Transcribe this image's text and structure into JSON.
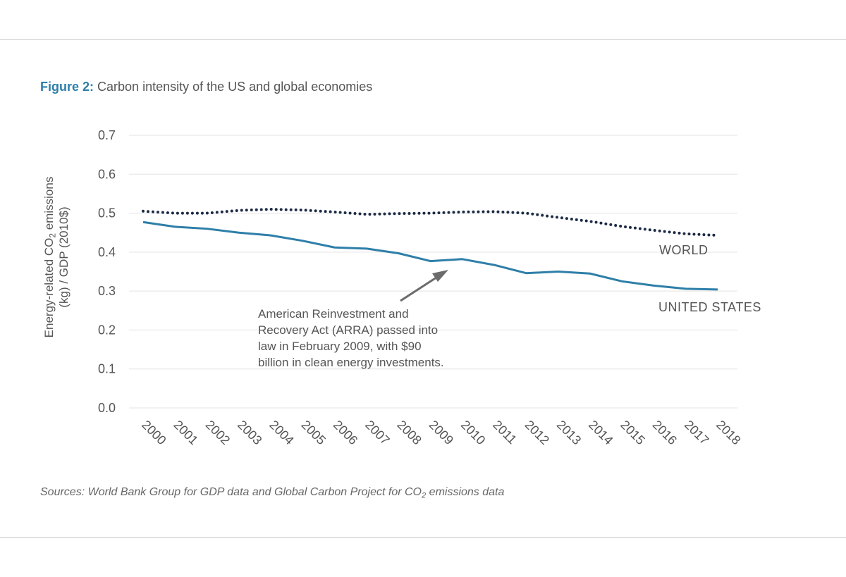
{
  "figure": {
    "label": "Figure 2:",
    "title": "Carbon intensity of the US and global economies"
  },
  "y_axis_label": {
    "line1_pre": "Energy-related CO",
    "line1_sub": "2",
    "line1_post": " emissions",
    "line2": "(kg) / GDP (2010$)"
  },
  "annotation": {
    "lines": [
      "American Reinvestment and",
      "Recovery Act (ARRA) passed into",
      "law in February 2009, with $90",
      "billion in clean energy investments."
    ]
  },
  "sources": {
    "pre": "Sources: World Bank Group for GDP data and Global Carbon Project for CO",
    "sub": "2",
    "post": " emissions data"
  },
  "colors": {
    "united_states": "#2e7fa8",
    "world": "#1c2a44",
    "grid": "#e3e3e3",
    "arrow": "#6b6b6b",
    "title_accent": "#2e7fa8"
  },
  "chart_data": {
    "type": "line",
    "title": "Carbon intensity of the US and global economies",
    "xlabel": "",
    "ylabel": "Energy-related CO2 emissions (kg) / GDP (2010$)",
    "ylim": [
      0,
      0.7
    ],
    "y_ticks": [
      "0.0",
      "0.1",
      "0.2",
      "0.3",
      "0.4",
      "0.5",
      "0.6",
      "0.7"
    ],
    "grid": true,
    "categories": [
      "2000",
      "2001",
      "2002",
      "2003",
      "2004",
      "2005",
      "2006",
      "2007",
      "2008",
      "2009",
      "2010",
      "2011",
      "2012",
      "2013",
      "2014",
      "2015",
      "2016",
      "2017",
      "2018"
    ],
    "series": [
      {
        "name": "WORLD",
        "style": "dotted",
        "values": [
          0.505,
          0.5,
          0.5,
          0.507,
          0.51,
          0.508,
          0.503,
          0.497,
          0.499,
          0.5,
          0.503,
          0.504,
          0.5,
          0.489,
          0.479,
          0.466,
          0.456,
          0.447,
          0.443
        ]
      },
      {
        "name": "UNITED STATES",
        "style": "solid",
        "values": [
          0.477,
          0.465,
          0.46,
          0.45,
          0.443,
          0.429,
          0.412,
          0.409,
          0.397,
          0.377,
          0.382,
          0.367,
          0.346,
          0.35,
          0.345,
          0.325,
          0.314,
          0.306,
          0.304
        ]
      }
    ]
  }
}
